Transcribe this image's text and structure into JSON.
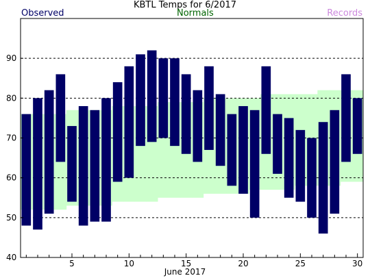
{
  "chart_data": {
    "type": "bar",
    "title": "KBTL Temps for 6/2017",
    "xlabel": "June 2017",
    "ylabel": "",
    "xlim": [
      0.5,
      30.5
    ],
    "ylim": [
      40,
      100
    ],
    "yticks": [
      40,
      50,
      60,
      70,
      80,
      90
    ],
    "xticks": [
      5,
      10,
      15,
      20,
      25,
      30
    ],
    "grid": "horizontal dashed at 50, 60, 70, 80, 90",
    "legend": [
      {
        "name": "Observed",
        "color": "#000066"
      },
      {
        "name": "Normals",
        "color": "#006400"
      },
      {
        "name": "Records",
        "color": "#cc88dd"
      }
    ],
    "days": [
      1,
      2,
      3,
      4,
      5,
      6,
      7,
      8,
      9,
      10,
      11,
      12,
      13,
      14,
      15,
      16,
      17,
      18,
      19,
      20,
      21,
      22,
      23,
      24,
      25,
      26,
      27,
      28,
      29,
      30
    ],
    "series": [
      {
        "name": "Observed",
        "high": [
          76,
          80,
          82,
          86,
          73,
          78,
          77,
          80,
          84,
          88,
          91,
          92,
          90,
          90,
          86,
          82,
          88,
          81,
          76,
          78,
          77,
          88,
          76,
          75,
          72,
          70,
          74,
          77,
          86,
          80
        ],
        "low": [
          48,
          47,
          51,
          64,
          54,
          48,
          49,
          49,
          59,
          60,
          68,
          69,
          70,
          68,
          66,
          64,
          67,
          63,
          58,
          56,
          50,
          66,
          61,
          55,
          54,
          50,
          46,
          51,
          64,
          66
        ]
      },
      {
        "name": "Normals",
        "high": [
          76,
          76,
          76,
          76,
          77,
          77,
          77,
          77,
          78,
          78,
          78,
          78,
          79,
          79,
          79,
          79,
          80,
          80,
          80,
          80,
          80,
          81,
          81,
          81,
          81,
          81,
          82,
          82,
          82,
          82
        ],
        "low": [
          52,
          52,
          52,
          52,
          53,
          53,
          53,
          53,
          54,
          54,
          54,
          54,
          55,
          55,
          55,
          55,
          56,
          56,
          56,
          56,
          57,
          57,
          57,
          57,
          58,
          58,
          58,
          58,
          59,
          59
        ]
      }
    ],
    "colors": {
      "observed": "#000066",
      "normals": "#ccffcc",
      "grid": "#000000"
    }
  }
}
